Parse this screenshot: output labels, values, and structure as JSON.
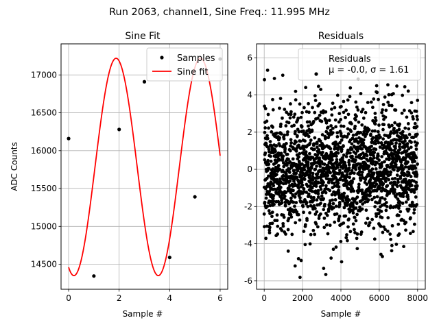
{
  "figure": {
    "suptitle": "Run 2063, channel1, Sine Freq.: 11.995 MHz"
  },
  "chart_data": [
    {
      "type": "line",
      "title": "Sine Fit",
      "xlabel": "Sample #",
      "ylabel": "ADC Counts",
      "xlim": [
        -0.3,
        6.3
      ],
      "ylim": [
        14170,
        17410
      ],
      "xticks": [
        0,
        2,
        4,
        6
      ],
      "yticks": [
        14500,
        15000,
        15500,
        16000,
        16500,
        17000
      ],
      "grid": true,
      "legend_position": "upper right",
      "series": [
        {
          "name": "Samples",
          "style": "points",
          "x": [
            0,
            1,
            2,
            3,
            4,
            5,
            6
          ],
          "y": [
            16160,
            14345,
            16280,
            16910,
            14590,
            15390,
            17210
          ]
        },
        {
          "name": "Sine fit",
          "style": "line",
          "model": {
            "offset": 15785,
            "amplitude": 1435,
            "period": 3.34,
            "phase_sample": 0.21
          },
          "x_range": [
            0,
            6
          ]
        }
      ]
    },
    {
      "type": "scatter",
      "title": "Residuals",
      "xlabel": "Sample #",
      "ylabel": "",
      "xlim": [
        -400,
        8400
      ],
      "ylim": [
        -6.45,
        6.75
      ],
      "xticks": [
        0,
        2000,
        4000,
        6000,
        8000
      ],
      "yticks": [
        -6,
        -4,
        -2,
        0,
        2,
        4,
        6
      ],
      "grid": true,
      "legend_position": "upper right",
      "legend": {
        "name": "Residuals",
        "stats": "μ = -0.0, σ = 1.61"
      },
      "series": [
        {
          "name": "Residuals",
          "n_points": 8000,
          "mean": 0.0,
          "std": 1.61,
          "x_range": [
            0,
            8000
          ],
          "y_range": [
            -5.9,
            6.1
          ]
        }
      ]
    }
  ],
  "colors": {
    "points": "#000000",
    "fit_line": "#ff0000",
    "grid": "#b0b0b0",
    "axes": "#000000",
    "legend_border": "#cccccc"
  }
}
